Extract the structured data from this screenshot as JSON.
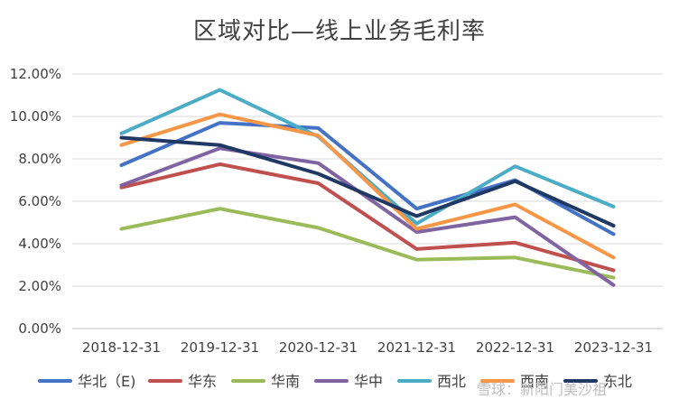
{
  "chart_data": {
    "type": "line",
    "title": "区域对比—线上业务毛利率",
    "xlabel": "",
    "ylabel": "",
    "categories": [
      "2018-12-31",
      "2019-12-31",
      "2020-12-31",
      "2021-12-31",
      "2022-12-31",
      "2023-12-31"
    ],
    "ylim": [
      0,
      12
    ],
    "yticks": [
      "0.00%",
      "2.00%",
      "4.00%",
      "6.00%",
      "8.00%",
      "10.00%",
      "12.00%"
    ],
    "grid": true,
    "legend_position": "bottom",
    "series": [
      {
        "name": "华北（E)",
        "color": "#4472c4",
        "values": [
          7.7,
          9.7,
          9.45,
          5.65,
          7.0,
          4.45
        ]
      },
      {
        "name": "华东",
        "color": "#c0504d",
        "values": [
          6.65,
          7.75,
          6.85,
          3.75,
          4.05,
          2.75
        ]
      },
      {
        "name": "华南",
        "color": "#9bbb59",
        "values": [
          4.7,
          5.65,
          4.75,
          3.25,
          3.35,
          2.4
        ]
      },
      {
        "name": "华中",
        "color": "#8064a2",
        "values": [
          6.75,
          8.5,
          7.8,
          4.55,
          5.25,
          2.05
        ]
      },
      {
        "name": "西北",
        "color": "#4bacc6",
        "values": [
          9.2,
          11.25,
          9.05,
          4.95,
          7.65,
          5.75
        ]
      },
      {
        "name": "西南",
        "color": "#f79646",
        "values": [
          8.65,
          10.1,
          9.1,
          4.7,
          5.85,
          3.35
        ]
      },
      {
        "name": "东北",
        "color": "#1f3864",
        "values": [
          9.0,
          8.65,
          7.3,
          5.3,
          6.95,
          4.85
        ]
      }
    ]
  },
  "watermark": "雪球：新阳门美沙祖"
}
